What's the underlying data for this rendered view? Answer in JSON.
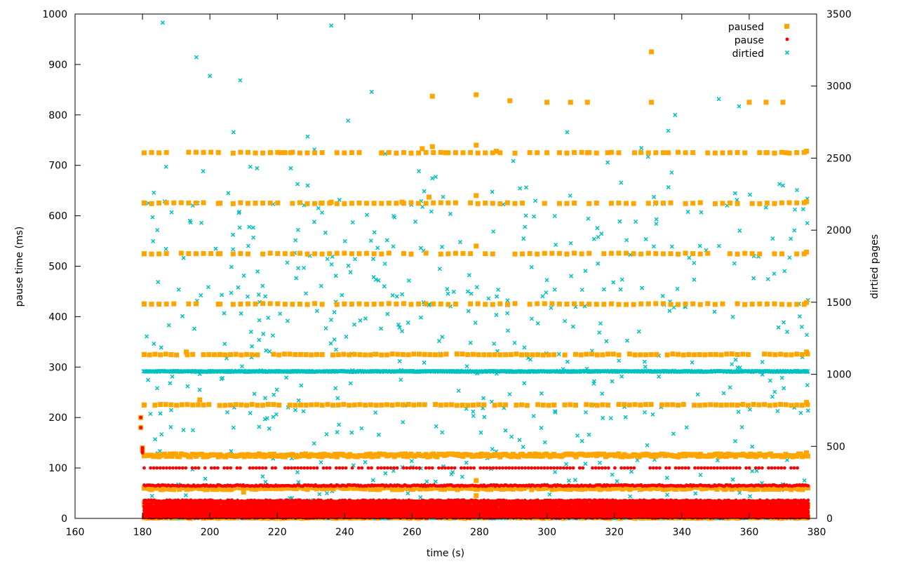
{
  "chart_data": {
    "type": "scatter",
    "title": "",
    "xlabel": "time (s)",
    "ylabel": "pause time (ms)",
    "y2label": "dirtied pages",
    "xlim": [
      160,
      380
    ],
    "ylim": [
      0,
      1000
    ],
    "y2lim": [
      0,
      3500
    ],
    "x_ticks": [
      160,
      180,
      200,
      220,
      240,
      260,
      280,
      300,
      320,
      340,
      360,
      380
    ],
    "y_ticks": [
      0,
      100,
      200,
      300,
      400,
      500,
      600,
      700,
      800,
      900,
      1000
    ],
    "y2_ticks": [
      0,
      500,
      1000,
      1500,
      2000,
      2500,
      3000,
      3500
    ],
    "grid": false,
    "legend_position": "top-right",
    "legend": [
      "paused",
      "pause",
      "dirtied"
    ],
    "series": [
      {
        "name": "paused",
        "axis": "y",
        "marker": "square",
        "color": "#ffa500",
        "x_range": [
          180,
          377.5
        ],
        "bands": [
          3,
          25,
          30,
          60,
          125,
          225,
          325,
          425,
          525,
          625,
          725
        ],
        "outliers": [
          [
            180.5,
            625
          ],
          [
            180.5,
            525
          ],
          [
            180.5,
            425
          ],
          [
            180.5,
            325
          ],
          [
            180.5,
            225
          ],
          [
            179.5,
            200
          ],
          [
            179.5,
            180
          ],
          [
            180,
            140
          ],
          [
            180,
            135
          ],
          [
            193,
            330
          ],
          [
            197,
            235
          ],
          [
            203,
            625
          ],
          [
            203,
            525
          ],
          [
            203,
            425
          ],
          [
            203,
            325
          ],
          [
            218,
            725
          ],
          [
            221,
            725
          ],
          [
            224,
            725
          ],
          [
            233,
            625
          ],
          [
            236,
            627
          ],
          [
            251,
            725
          ],
          [
            257,
            627
          ],
          [
            263,
            733
          ],
          [
            265,
            637
          ],
          [
            266,
            737
          ],
          [
            266,
            837
          ],
          [
            270,
            725
          ],
          [
            279,
            740
          ],
          [
            279,
            840
          ],
          [
            279,
            640
          ],
          [
            279,
            540
          ],
          [
            285,
            728
          ],
          [
            289,
            828
          ],
          [
            300,
            825
          ],
          [
            300,
            725
          ],
          [
            307,
            825
          ],
          [
            312,
            825
          ],
          [
            312,
            725
          ],
          [
            318,
            725
          ],
          [
            326,
            725
          ],
          [
            331,
            925
          ],
          [
            331,
            825
          ],
          [
            336,
            725
          ],
          [
            360,
            825
          ],
          [
            365,
            825
          ],
          [
            370,
            825
          ],
          [
            365,
            725
          ],
          [
            371,
            725
          ],
          [
            377,
            728
          ],
          [
            377,
            628
          ],
          [
            377,
            528
          ],
          [
            377,
            428
          ],
          [
            377,
            330
          ],
          [
            377,
            230
          ],
          [
            377,
            130
          ],
          [
            279,
            75
          ],
          [
            279,
            45
          ],
          [
            210,
            52
          ]
        ]
      },
      {
        "name": "pause",
        "axis": "y",
        "marker": "dot",
        "color": "#ff0000",
        "x_range": [
          180,
          377.5
        ],
        "bands": [
          2,
          5,
          8,
          12,
          16,
          20,
          25,
          30,
          35,
          65,
          100
        ],
        "outliers": [
          [
            179.5,
            200
          ],
          [
            179.5,
            180
          ],
          [
            180,
            140
          ],
          [
            180,
            137
          ],
          [
            180,
            133
          ],
          [
            180,
            130
          ]
        ]
      },
      {
        "name": "dirtied",
        "axis": "y2",
        "marker": "x",
        "color": "#00c0c0",
        "x_range": [
          180,
          377.5
        ],
        "baseline": 1020,
        "floor": 0,
        "scatter_range": [
          100,
          2300
        ],
        "highs": [
          [
            186,
            3440
          ],
          [
            196,
            3200
          ],
          [
            200,
            3070
          ],
          [
            209,
            3040
          ],
          [
            207,
            2680
          ],
          [
            236,
            3420
          ],
          [
            241,
            2760
          ],
          [
            248,
            2960
          ],
          [
            229,
            2650
          ],
          [
            231,
            2560
          ],
          [
            214,
            2430
          ],
          [
            224,
            2430
          ],
          [
            226,
            2320
          ],
          [
            229,
            2310
          ],
          [
            252,
            2530
          ],
          [
            262,
            2410
          ],
          [
            266,
            2360
          ],
          [
            267,
            2370
          ],
          [
            306,
            2680
          ],
          [
            328,
            2570
          ],
          [
            330,
            2510
          ],
          [
            336,
            2690
          ],
          [
            337,
            2400
          ],
          [
            338,
            2800
          ],
          [
            351,
            2910
          ],
          [
            357,
            2860
          ],
          [
            369,
            2320
          ],
          [
            370,
            2310
          ],
          [
            318,
            2470
          ],
          [
            322,
            2330
          ],
          [
            290,
            2480
          ],
          [
            292,
            2290
          ],
          [
            198,
            2410
          ],
          [
            212,
            2440
          ],
          [
            187,
            2440
          ],
          [
            183,
            2090
          ]
        ]
      }
    ]
  }
}
